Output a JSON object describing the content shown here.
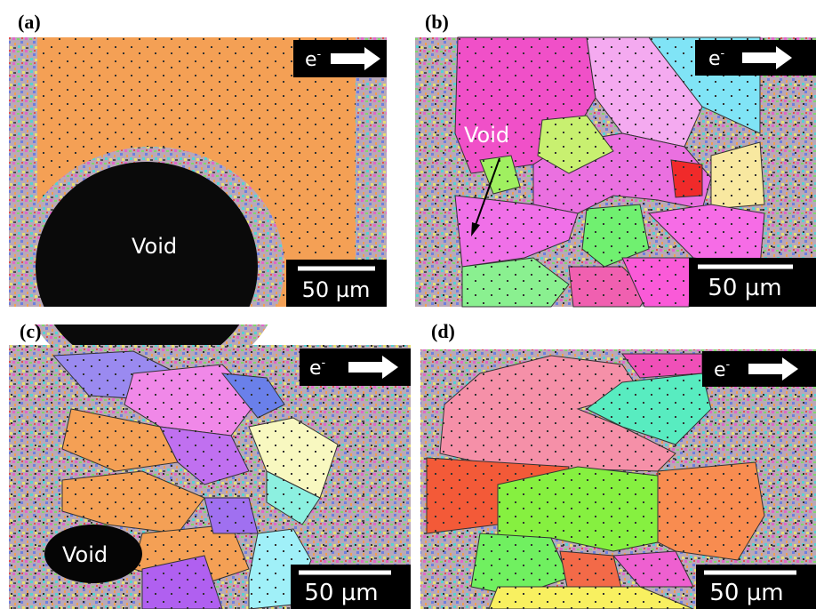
{
  "panels": [
    {
      "label": "(a)",
      "electron": "e",
      "electron_sup": "-",
      "void": "Void",
      "scale": "50 µm"
    },
    {
      "label": "(b)",
      "electron": "e",
      "electron_sup": "-",
      "void": "Void",
      "scale": "50 µm"
    },
    {
      "label": "(c)",
      "electron": "e",
      "electron_sup": "-",
      "void": "Void",
      "scale": "50 µm"
    },
    {
      "label": "(d)",
      "electron": "e",
      "electron_sup": "-",
      "scale": "50 µm"
    }
  ]
}
